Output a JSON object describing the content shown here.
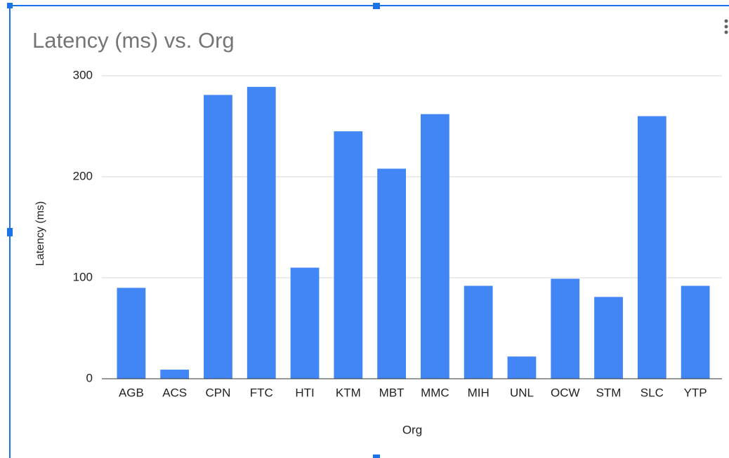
{
  "chart_data": {
    "type": "bar",
    "title": "Latency (ms) vs. Org",
    "x_label": "Org",
    "y_label": "Latency (ms)",
    "categories": [
      "AGB",
      "ACS",
      "CPN",
      "FTC",
      "HTI",
      "KTM",
      "MBT",
      "MMC",
      "MIH",
      "UNL",
      "OCW",
      "STM",
      "SLC",
      "YTP"
    ],
    "values": [
      90,
      9,
      281,
      289,
      110,
      245,
      208,
      262,
      92,
      22,
      99,
      81,
      260,
      92
    ],
    "color": "#4285f4",
    "ylim": [
      0,
      300
    ],
    "yticks": [
      0,
      100,
      200,
      300
    ],
    "grid": true
  }
}
